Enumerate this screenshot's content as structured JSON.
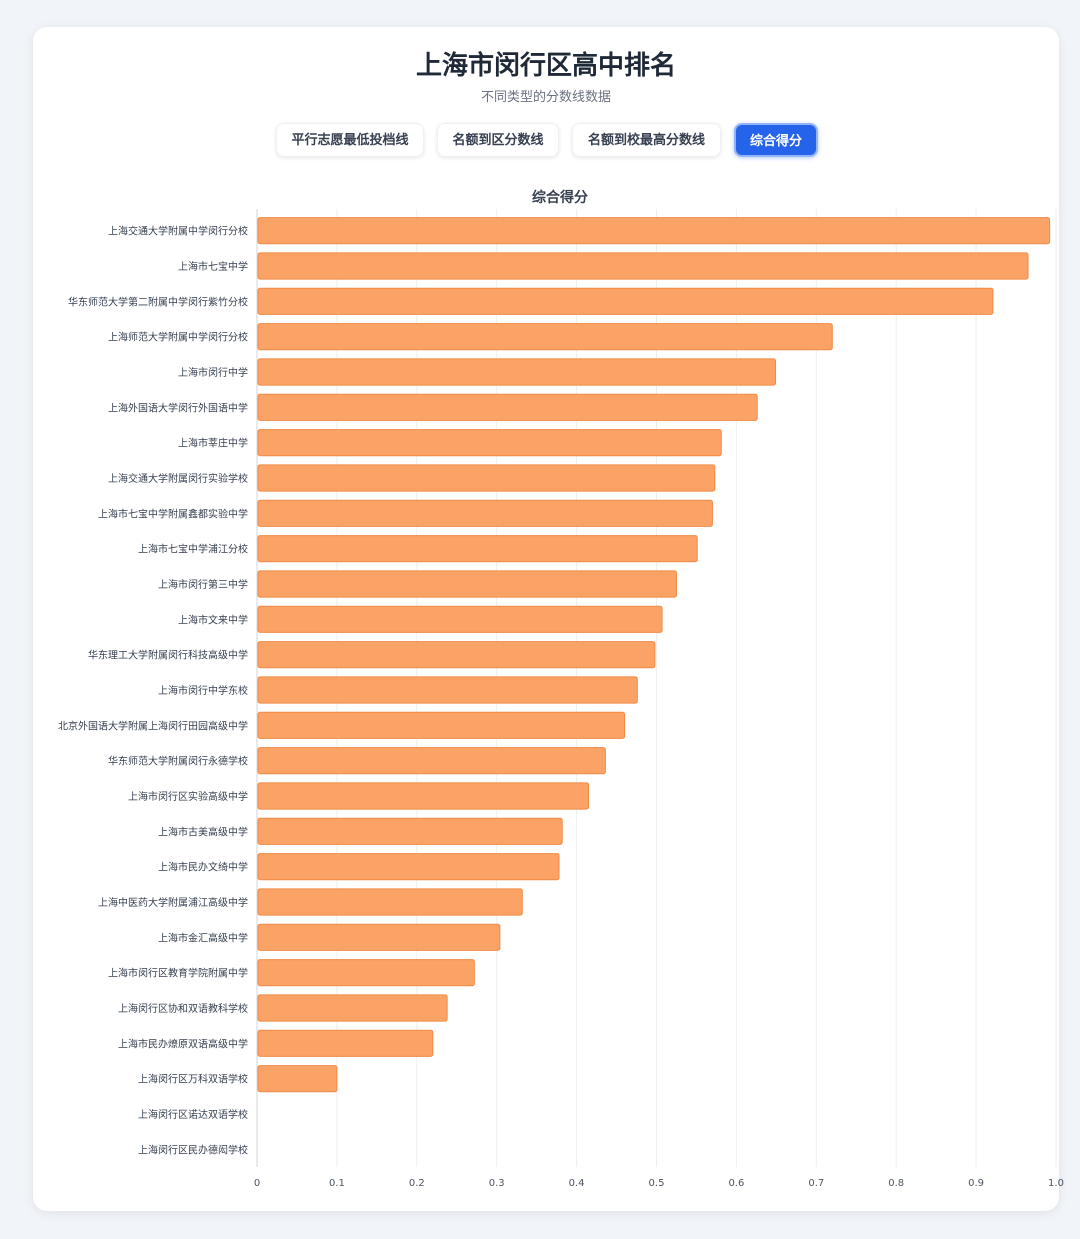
{
  "header": {
    "title": "上海市闵行区高中排名",
    "subtitle": "不同类型的分数线数据"
  },
  "tabs": [
    {
      "label": "平行志愿最低投档线",
      "active": false
    },
    {
      "label": "名额到区分数线",
      "active": false
    },
    {
      "label": "名额到校最高分数线",
      "active": false
    },
    {
      "label": "综合得分",
      "active": true
    }
  ],
  "colors": {
    "bar_fill": "#fba266",
    "bar_stroke": "#f08a45",
    "accent": "#2563eb"
  },
  "chart_data": {
    "type": "bar",
    "orientation": "horizontal",
    "title": "综合得分",
    "xlim": [
      0,
      1.0
    ],
    "x_ticks": [
      "0",
      "0.1",
      "0.2",
      "0.3",
      "0.4",
      "0.5",
      "0.6",
      "0.7",
      "0.8",
      "0.9",
      "1.0"
    ],
    "grid": true,
    "legend": "none",
    "categories": [
      "上海交通大学附属中学闵行分校",
      "上海市七宝中学",
      "华东师范大学第二附属中学闵行紫竹分校",
      "上海师范大学附属中学闵行分校",
      "上海市闵行中学",
      "上海外国语大学闵行外国语中学",
      "上海市莘庄中学",
      "上海交通大学附属闵行实验学校",
      "上海市七宝中学附属鑫都实验中学",
      "上海市七宝中学浦江分校",
      "上海市闵行第三中学",
      "上海市文来中学",
      "华东理工大学附属闵行科技高级中学",
      "上海市闵行中学东校",
      "北京外国语大学附属上海闵行田园高级中学",
      "华东师范大学附属闵行永德学校",
      "上海市闵行区实验高级中学",
      "上海市古美高级中学",
      "上海市民办文绮中学",
      "上海中医药大学附属浦江高级中学",
      "上海市金汇高级中学",
      "上海市闵行区教育学院附属中学",
      "上海闵行区协和双语教科学校",
      "上海市民办燎原双语高级中学",
      "上海闵行区万科双语学校",
      "上海闵行区诺达双语学校",
      "上海闵行区民办德闳学校"
    ],
    "values": [
      0.992,
      0.965,
      0.921,
      0.72,
      0.649,
      0.626,
      0.581,
      0.573,
      0.57,
      0.551,
      0.525,
      0.507,
      0.498,
      0.476,
      0.46,
      0.436,
      0.415,
      0.382,
      0.378,
      0.332,
      0.304,
      0.272,
      0.238,
      0.22,
      0.1,
      0,
      0
    ]
  }
}
